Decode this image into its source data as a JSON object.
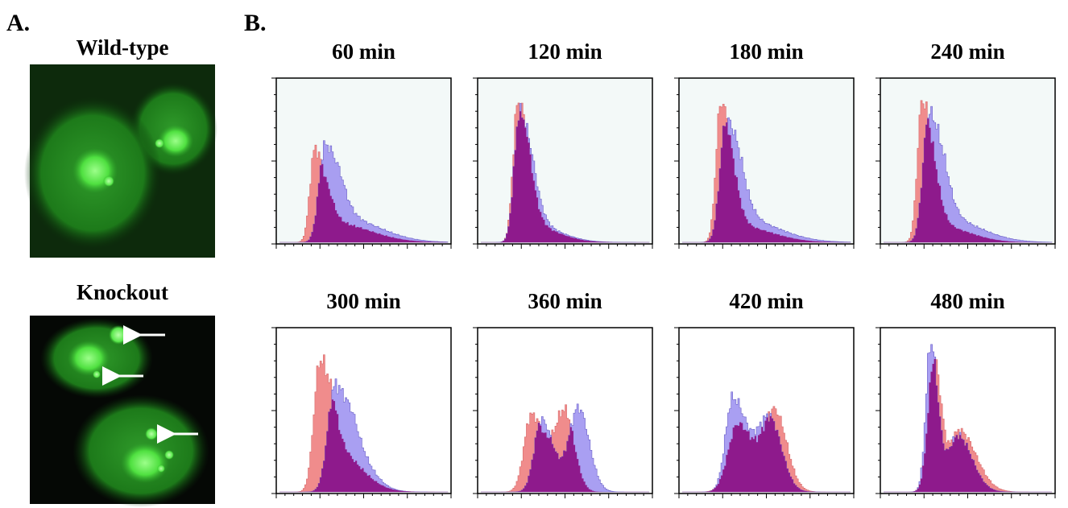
{
  "panel_a": {
    "label": "A.",
    "images": [
      {
        "title": "Wild-type"
      },
      {
        "title": "Knockout"
      }
    ]
  },
  "panel_b": {
    "label": "B.",
    "panels": [
      "60 min",
      "120 min",
      "180 min",
      "240 min",
      "300 min",
      "360 min",
      "420 min",
      "480 min"
    ]
  }
}
